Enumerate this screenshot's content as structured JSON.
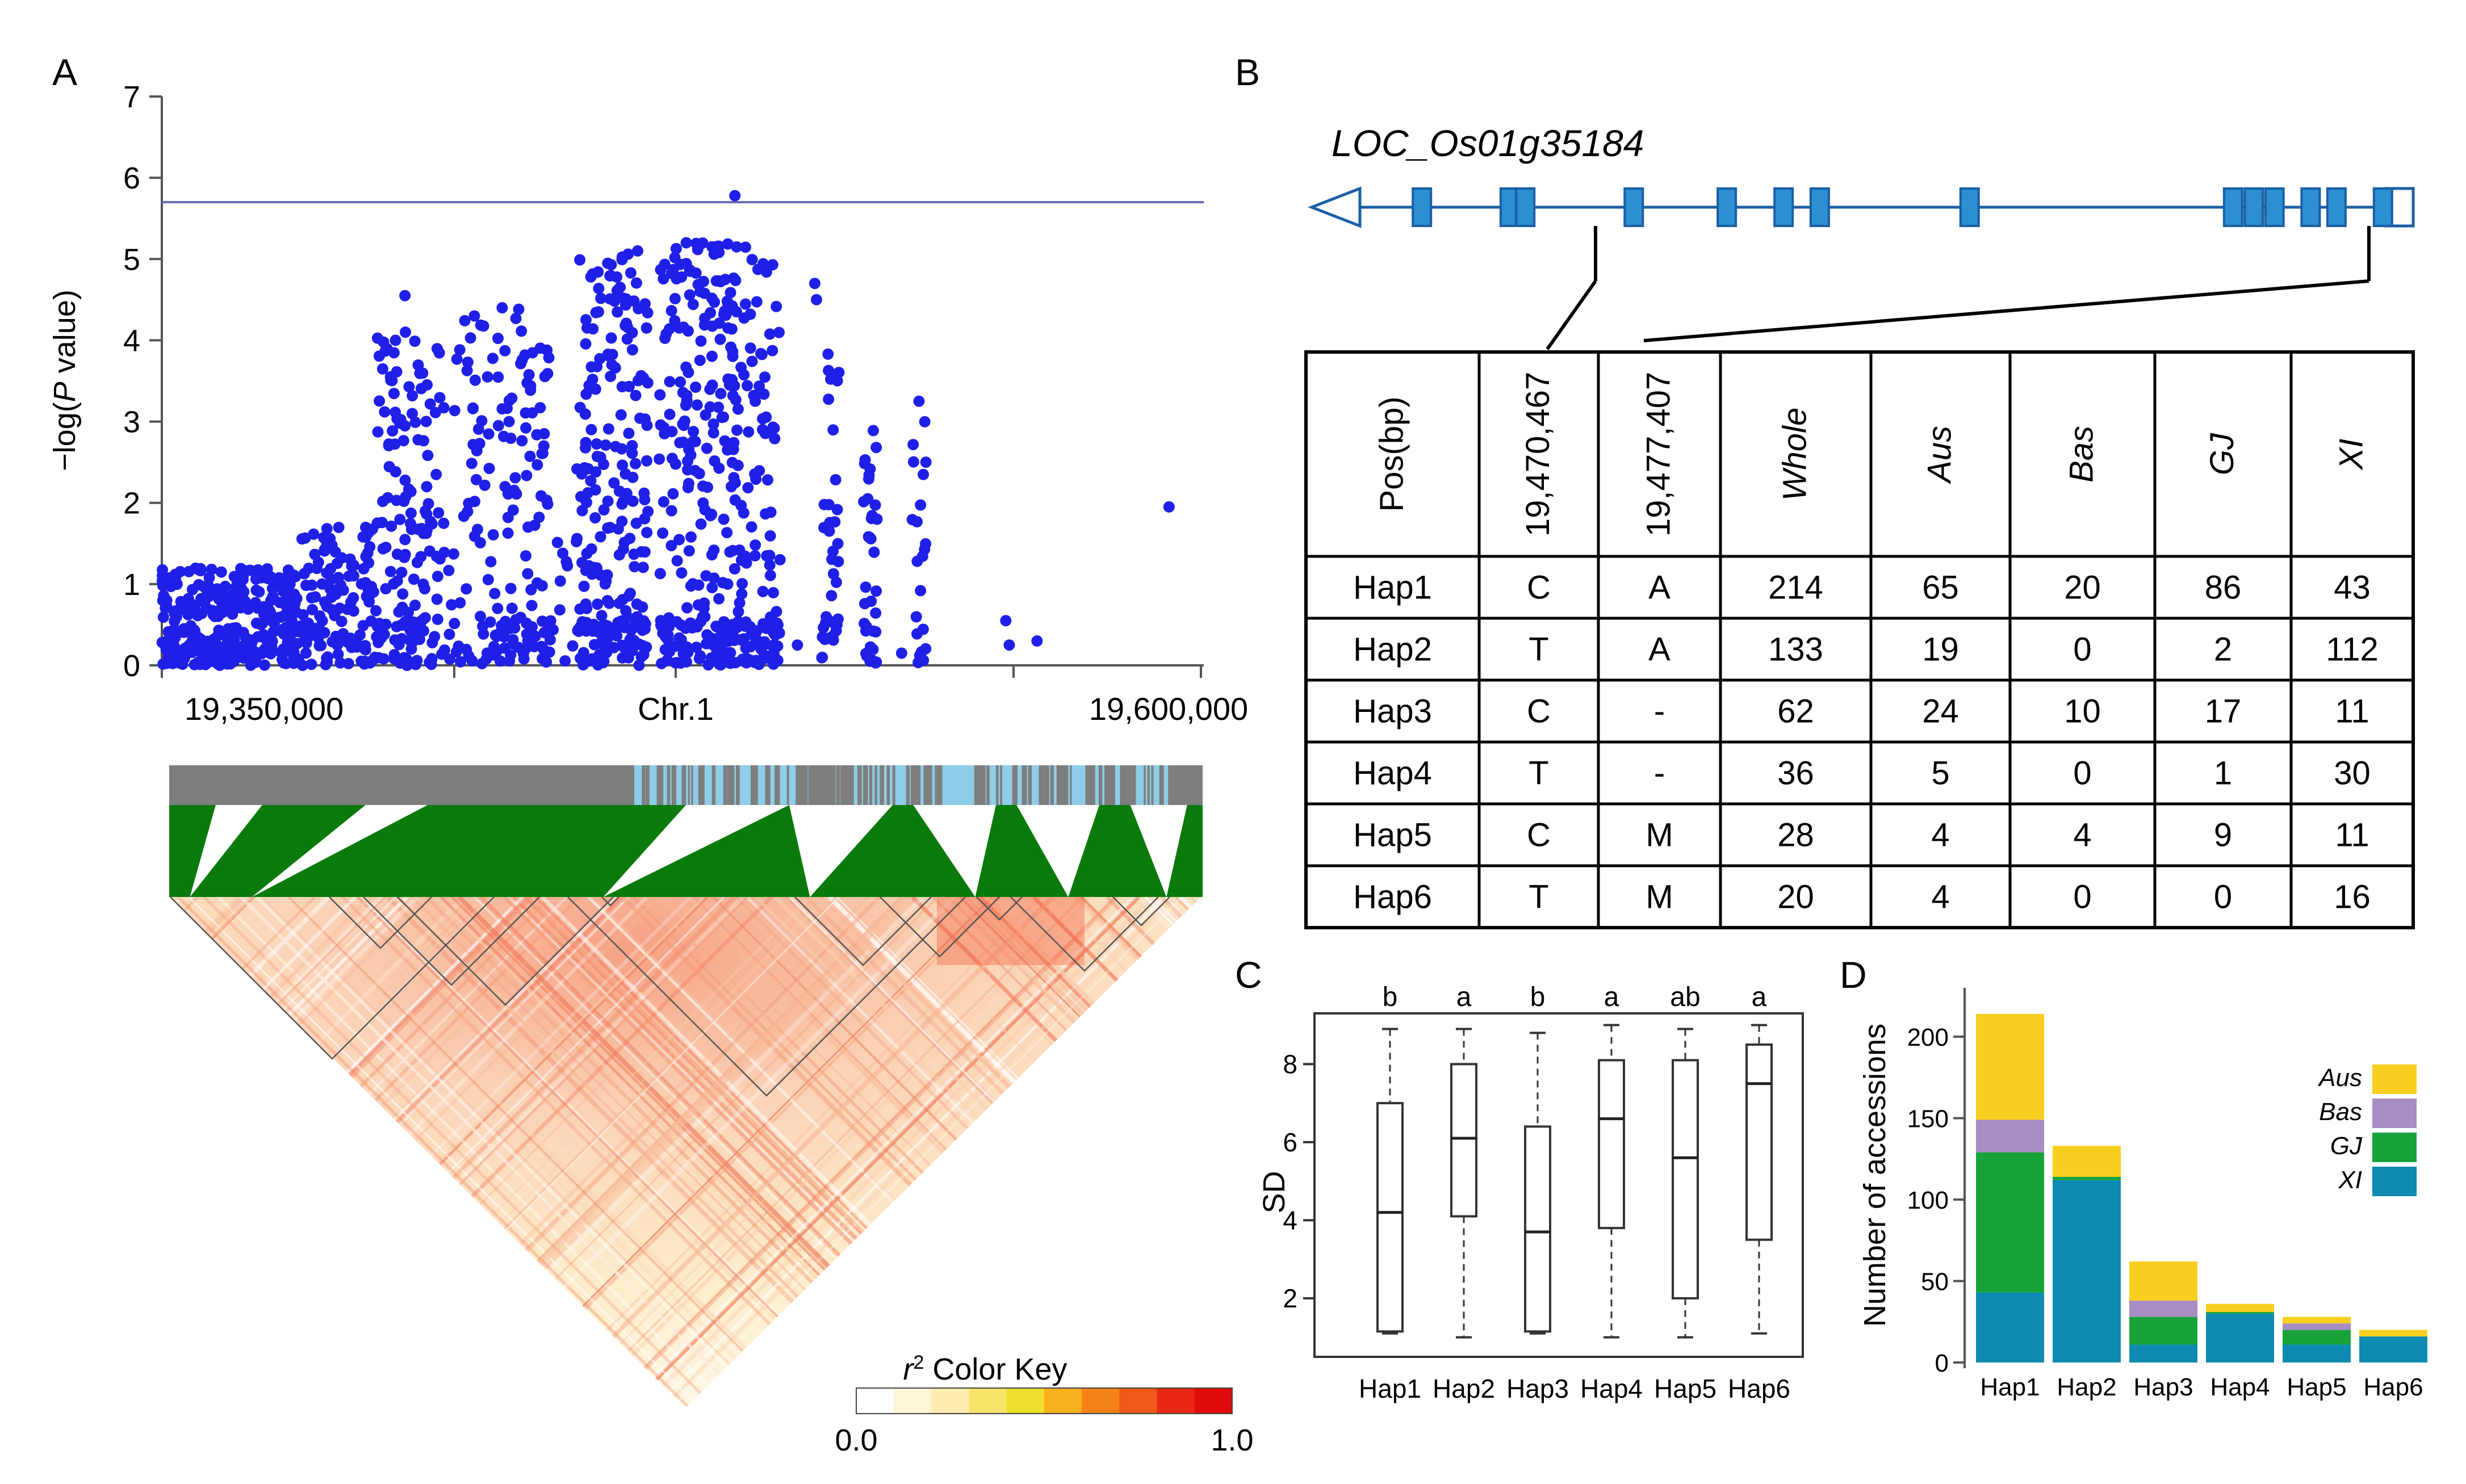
{
  "panel_labels": {
    "a": "A",
    "b": "B",
    "c": "C",
    "d": "D"
  },
  "colors": {
    "point_blue": "#1f1fe8",
    "threshold_line": "#6a6ab8",
    "gene_blue": "#2b8fd0",
    "gene_outline": "#1b5fa5",
    "ld_gray": "#7e7e7e",
    "ld_lightblue": "#8ecde8",
    "ld_green": "#0a7a0a",
    "aus": "#f9cf1f",
    "bas": "#a88cc4",
    "gj": "#17a33a",
    "xi": "#0e8bb0"
  },
  "chart_data": [
    {
      "type": "scatter",
      "panel": "A",
      "ylabel": "-log(P value)",
      "ylabel_prefix": "−log(",
      "ylabel_italic": "P",
      "ylabel_suffix": " value)",
      "xlabel": "Chr.1",
      "xlim": [
        19300000,
        19600000
      ],
      "ylim": [
        0,
        7
      ],
      "yticks": [
        0,
        1,
        2,
        3,
        4,
        5,
        6,
        7
      ],
      "xtick_labels": [
        "19,350,000",
        "Chr.1",
        "19,600,000"
      ],
      "threshold": 5.7,
      "clusters": [
        {
          "x0": 19300000,
          "x1": 19340000,
          "ymax": 1.2,
          "n": 320
        },
        {
          "x0": 19340000,
          "x1": 19362000,
          "ymax": 1.7,
          "n": 120
        },
        {
          "x0": 19362000,
          "x1": 19380000,
          "ymax": 4.1,
          "n": 150
        },
        {
          "x0": 19380000,
          "x1": 19395000,
          "ymax": 4.3,
          "n": 60
        },
        {
          "x0": 19395000,
          "x1": 19412000,
          "ymax": 4.4,
          "n": 110
        },
        {
          "x0": 19412000,
          "x1": 19420000,
          "ymax": 2.6,
          "n": 15
        },
        {
          "x0": 19420000,
          "x1": 19440000,
          "ymax": 5.1,
          "n": 230
        },
        {
          "x0": 19443000,
          "x1": 19470000,
          "ymax": 5.2,
          "n": 300
        },
        {
          "x0": 19470000,
          "x1": 19478000,
          "ymax": 5.0,
          "n": 80
        },
        {
          "x0": 19490000,
          "x1": 19495000,
          "ymax": 3.9,
          "n": 40
        },
        {
          "x0": 19502000,
          "x1": 19506000,
          "ymax": 3.0,
          "n": 35
        },
        {
          "x0": 19516000,
          "x1": 19520000,
          "ymax": 3.1,
          "n": 20
        }
      ],
      "points": [
        {
          "x": 19465000,
          "y": 5.78
        },
        {
          "x": 19451000,
          "y": 5.2
        },
        {
          "x": 19465500,
          "y": 5.15
        },
        {
          "x": 19437000,
          "y": 5.1
        },
        {
          "x": 19370000,
          "y": 4.55
        },
        {
          "x": 19488000,
          "y": 4.7
        },
        {
          "x": 19488500,
          "y": 4.5
        },
        {
          "x": 19455000,
          "y": 4.6
        },
        {
          "x": 19398000,
          "y": 4.4
        },
        {
          "x": 19390000,
          "y": 4.3
        },
        {
          "x": 19478000,
          "y": 1.3
        },
        {
          "x": 19483000,
          "y": 0.25
        },
        {
          "x": 19518000,
          "y": 3.25
        },
        {
          "x": 19513000,
          "y": 0.15
        },
        {
          "x": 19520000,
          "y": 2.5
        },
        {
          "x": 19543000,
          "y": 0.55
        },
        {
          "x": 19552000,
          "y": 0.3
        },
        {
          "x": 19544000,
          "y": 0.25
        },
        {
          "x": 19590000,
          "y": 1.95
        },
        {
          "x": 19400000,
          "y": 3.0
        },
        {
          "x": 19410000,
          "y": 2.7
        }
      ]
    },
    {
      "type": "table",
      "panel": "B",
      "gene": "LOC_Os01g35184",
      "exons": [
        0.06,
        0.145,
        0.16,
        0.265,
        0.355,
        0.41,
        0.445,
        0.59,
        0.845,
        0.865,
        0.885,
        0.92,
        0.945,
        0.99
      ],
      "columns": [
        "Pos(bp)",
        "19,470,467",
        "19,477,407",
        "Whole",
        "Aus",
        "Bas",
        "GJ",
        "XI"
      ],
      "italic_columns": [
        "Whole",
        "Aus",
        "Bas",
        "GJ",
        "XI"
      ],
      "rows": [
        [
          "Hap1",
          "C",
          "A",
          "214",
          "65",
          "20",
          "86",
          "43"
        ],
        [
          "Hap2",
          "T",
          "A",
          "133",
          "19",
          "0",
          "2",
          "112"
        ],
        [
          "Hap3",
          "C",
          "-",
          "62",
          "24",
          "10",
          "17",
          "11"
        ],
        [
          "Hap4",
          "T",
          "-",
          "36",
          "5",
          "0",
          "1",
          "30"
        ],
        [
          "Hap5",
          "C",
          "M",
          "28",
          "4",
          "4",
          "9",
          "11"
        ],
        [
          "Hap6",
          "T",
          "M",
          "20",
          "4",
          "0",
          "0",
          "16"
        ]
      ]
    },
    {
      "type": "boxplot",
      "panel": "C",
      "ylabel": "SD",
      "ylim": [
        0.5,
        9.3
      ],
      "yticks": [
        2,
        4,
        6,
        8
      ],
      "categories": [
        "Hap1",
        "Hap2",
        "Hap3",
        "Hap4",
        "Hap5",
        "Hap6"
      ],
      "letters": [
        "b",
        "a",
        "b",
        "a",
        "ab",
        "a"
      ],
      "boxes": [
        {
          "min": 1.1,
          "q1": 1.15,
          "median": 4.2,
          "q3": 7.0,
          "max": 8.9
        },
        {
          "min": 1.0,
          "q1": 4.1,
          "median": 6.1,
          "q3": 8.0,
          "max": 8.9
        },
        {
          "min": 1.1,
          "q1": 1.15,
          "median": 3.7,
          "q3": 6.4,
          "max": 8.8
        },
        {
          "min": 1.0,
          "q1": 3.8,
          "median": 6.6,
          "q3": 8.1,
          "max": 9.0
        },
        {
          "min": 1.0,
          "q1": 2.0,
          "median": 5.6,
          "q3": 8.1,
          "max": 8.9
        },
        {
          "min": 1.1,
          "q1": 3.5,
          "median": 7.5,
          "q3": 8.5,
          "max": 9.0
        }
      ]
    },
    {
      "type": "bar",
      "panel": "D",
      "stacked": true,
      "ylabel": "Number of accessions",
      "ylim": [
        0,
        230
      ],
      "yticks": [
        0,
        50,
        100,
        150,
        200
      ],
      "categories": [
        "Hap1",
        "Hap2",
        "Hap3",
        "Hap4",
        "Hap5",
        "Hap6"
      ],
      "series": [
        {
          "name": "XI",
          "values": [
            43,
            112,
            11,
            30,
            11,
            16
          ]
        },
        {
          "name": "GJ",
          "values": [
            86,
            2,
            17,
            1,
            9,
            0
          ]
        },
        {
          "name": "Bas",
          "values": [
            20,
            0,
            10,
            0,
            4,
            0
          ]
        },
        {
          "name": "Aus",
          "values": [
            65,
            19,
            24,
            5,
            4,
            4
          ]
        }
      ],
      "legend_order": [
        "Aus",
        "Bas",
        "GJ",
        "XI"
      ],
      "legend_position": "right"
    },
    {
      "type": "heatmap",
      "panel": "A-LD",
      "key_title_sym": "r",
      "key_title_sup": "2",
      "key_title_rest": " Color Key",
      "key_min": "0.0",
      "key_max": "1.0",
      "key_colors": [
        "#ffffff",
        "#fff6d6",
        "#fdeeb0",
        "#f7e36a",
        "#eedd2a",
        "#f8b01c",
        "#f58218",
        "#ef5a18",
        "#e82814",
        "#e00c0c"
      ]
    }
  ]
}
